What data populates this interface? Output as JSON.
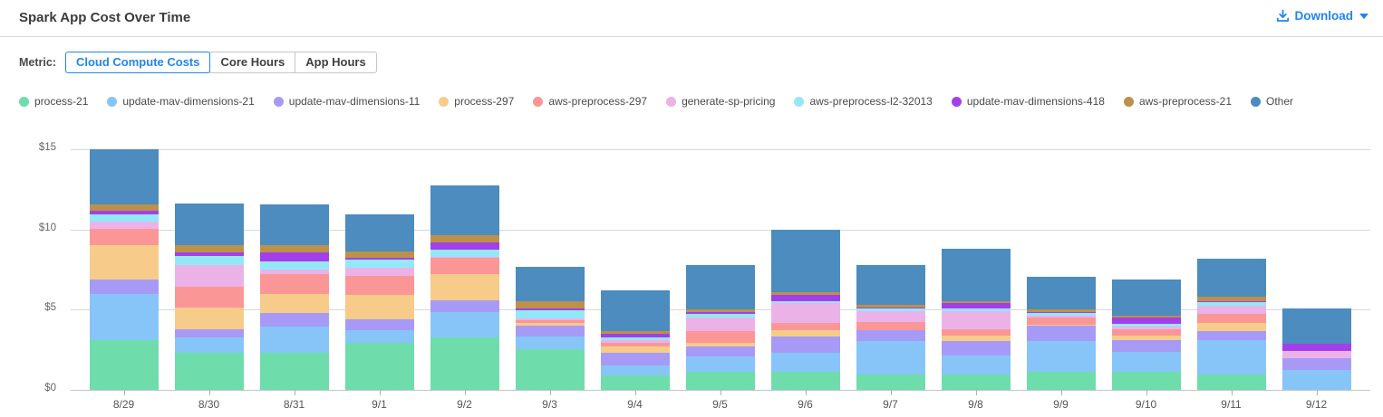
{
  "header": {
    "title": "Spark App Cost Over Time",
    "download_label": "Download"
  },
  "metric": {
    "label": "Metric:",
    "options": [
      {
        "label": "Cloud Compute Costs",
        "selected": true
      },
      {
        "label": "Core Hours",
        "selected": false
      },
      {
        "label": "App Hours",
        "selected": false
      }
    ]
  },
  "colors": {
    "accent_blue": "#2186eb",
    "gridline": "#d8d8d8",
    "axis_text": "#666666"
  },
  "chart_data": {
    "type": "bar",
    "stacked": true,
    "title": "Spark App Cost Over Time",
    "xlabel": "",
    "ylabel": "Cloud Compute Costs ($)",
    "ylim": [
      0,
      15
    ],
    "yticks": [
      {
        "value": 0,
        "label": "$0"
      },
      {
        "value": 5,
        "label": "$5"
      },
      {
        "value": 10,
        "label": "$10"
      },
      {
        "value": 15,
        "label": "$15"
      }
    ],
    "grid": true,
    "legend_position": "top",
    "categories": [
      "8/29",
      "8/30",
      "8/31",
      "9/1",
      "9/2",
      "9/3",
      "9/4",
      "9/5",
      "9/6",
      "9/7",
      "9/8",
      "9/9",
      "9/10",
      "9/11",
      "9/12"
    ],
    "series": [
      {
        "name": "process-21",
        "color": "#6fdcac",
        "values": [
          3.1,
          2.3,
          2.3,
          2.95,
          3.25,
          2.55,
          0.9,
          1.1,
          1.15,
          0.95,
          0.95,
          1.1,
          1.1,
          0.95,
          0.0
        ]
      },
      {
        "name": "update-mav-dimensions-21",
        "color": "#87c5f8",
        "values": [
          2.85,
          0.95,
          1.65,
          0.8,
          1.6,
          0.8,
          0.65,
          1.0,
          1.15,
          2.1,
          1.2,
          1.95,
          1.25,
          2.15,
          1.25
        ]
      },
      {
        "name": "update-mav-dimensions-11",
        "color": "#a79af6",
        "values": [
          0.95,
          0.55,
          0.85,
          0.65,
          0.75,
          0.65,
          0.75,
          0.6,
          1.0,
          0.65,
          0.9,
          0.95,
          0.75,
          0.55,
          0.75
        ]
      },
      {
        "name": "process-297",
        "color": "#f7cb8a",
        "values": [
          2.1,
          1.35,
          1.2,
          1.55,
          1.6,
          0.15,
          0.4,
          0.25,
          0.45,
          0.05,
          0.35,
          0.05,
          0.3,
          0.5,
          0.0
        ]
      },
      {
        "name": "aws-preprocess-297",
        "color": "#fb9697",
        "values": [
          1.05,
          1.3,
          1.2,
          1.15,
          1.05,
          0.2,
          0.25,
          0.7,
          0.45,
          0.5,
          0.4,
          0.45,
          0.4,
          0.6,
          0.0
        ]
      },
      {
        "name": "generate-sp-pricing",
        "color": "#ebb2e8",
        "values": [
          0.45,
          1.35,
          0.3,
          0.5,
          0.05,
          0.1,
          0.15,
          0.85,
          1.2,
          0.65,
          1.1,
          0.15,
          0.15,
          0.5,
          0.45
        ]
      },
      {
        "name": "aws-preprocess-l2-32013",
        "color": "#93e8f8",
        "values": [
          0.45,
          0.55,
          0.5,
          0.5,
          0.45,
          0.5,
          0.15,
          0.25,
          0.15,
          0.15,
          0.2,
          0.15,
          0.15,
          0.2,
          0.0
        ]
      },
      {
        "name": "update-mav-dimensions-418",
        "color": "#a33fea",
        "values": [
          0.2,
          0.25,
          0.55,
          0.15,
          0.45,
          0.15,
          0.25,
          0.1,
          0.35,
          0.1,
          0.3,
          0.05,
          0.4,
          0.1,
          0.4
        ]
      },
      {
        "name": "aws-preprocess-21",
        "color": "#bc9148",
        "values": [
          0.4,
          0.4,
          0.45,
          0.4,
          0.45,
          0.45,
          0.15,
          0.15,
          0.2,
          0.15,
          0.15,
          0.15,
          0.15,
          0.25,
          0.0
        ]
      },
      {
        "name": "Other",
        "color": "#4c8cbe",
        "values": [
          3.45,
          2.6,
          2.55,
          2.3,
          3.1,
          2.15,
          2.55,
          2.8,
          3.9,
          2.5,
          3.25,
          2.05,
          2.25,
          2.4,
          2.2
        ]
      }
    ],
    "totals": [
      15.0,
      11.6,
      11.55,
      10.95,
      12.75,
      7.7,
      6.2,
      7.8,
      10.0,
      7.8,
      8.8,
      7.05,
      6.9,
      8.2,
      5.05
    ]
  }
}
